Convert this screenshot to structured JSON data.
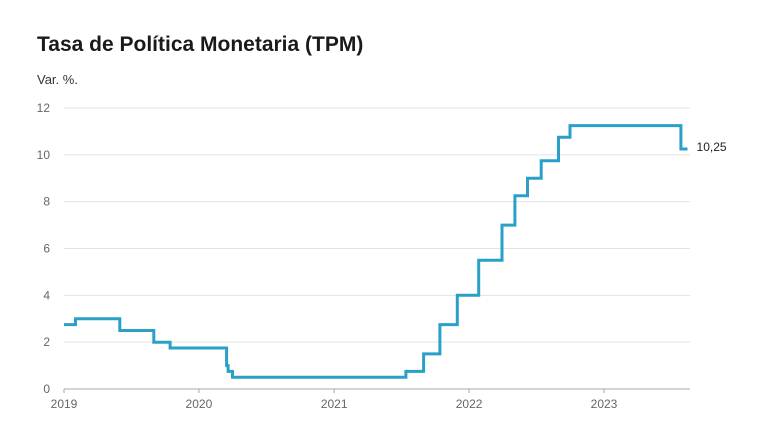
{
  "chart": {
    "title": "Tasa de Política Monetaria (TPM)",
    "ylabel": "Var. %.",
    "end_label": "10,25"
  },
  "colors": {
    "line": "#2aa0c9",
    "grid": "#e3e3e3",
    "axis": "#aaaaaa"
  },
  "chart_data": {
    "type": "line",
    "title": "Tasa de Política Monetaria (TPM)",
    "ylabel": "Var. %.",
    "xlabel": "",
    "ylim": [
      0,
      12
    ],
    "xlim": [
      "2019-01-01",
      "2023-08-31"
    ],
    "yticks": [
      0,
      2,
      4,
      6,
      8,
      10,
      12
    ],
    "xticks": [
      "2019",
      "2020",
      "2021",
      "2022",
      "2023"
    ],
    "grid": true,
    "step": "after",
    "end_label": "10,25",
    "series": [
      {
        "x": [
          "2019-01-01",
          "2019-02-01",
          "2019-06-01",
          "2019-09-01",
          "2019-10-15",
          "2020-03-16",
          "2020-03-20",
          "2020-04-01",
          "2021-07-14",
          "2021-08-31",
          "2021-10-14",
          "2021-11-30",
          "2022-01-27",
          "2022-03-31",
          "2022-05-05",
          "2022-06-08",
          "2022-07-15",
          "2022-08-31",
          "2022-10-01",
          "2023-07-28",
          "2023-08-15"
        ],
        "values": [
          2.75,
          3.0,
          2.5,
          2.0,
          1.75,
          1.0,
          0.75,
          0.5,
          0.75,
          1.5,
          2.75,
          4.0,
          5.5,
          7.0,
          8.25,
          9.0,
          9.75,
          10.75,
          11.25,
          10.25,
          10.25
        ]
      }
    ]
  }
}
